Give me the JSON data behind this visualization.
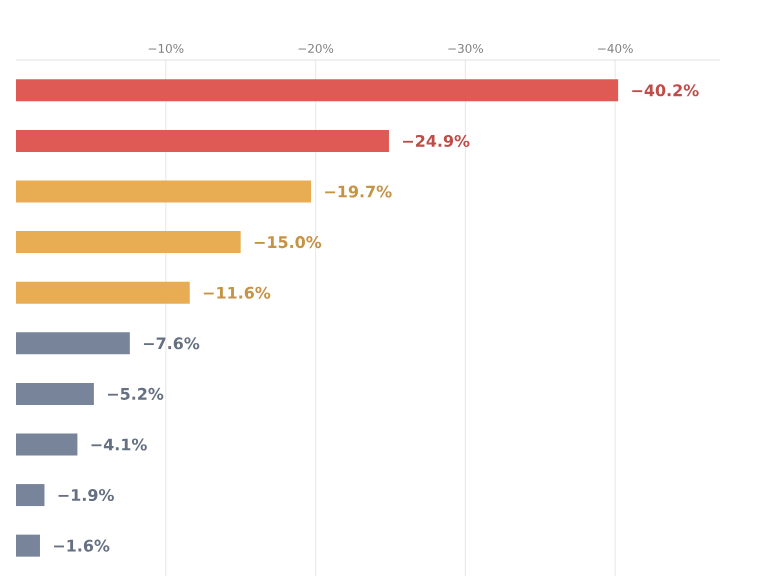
{
  "chart_data": {
    "type": "bar",
    "orientation": "horizontal",
    "categories": [
      null,
      null,
      null,
      null,
      null,
      null,
      null,
      null,
      null,
      null
    ],
    "values": [
      -40.2,
      -24.9,
      -19.7,
      -15.0,
      -11.6,
      -7.6,
      -5.2,
      -4.1,
      -1.9,
      -1.6
    ],
    "value_labels": [
      "−40.2%",
      "−24.9%",
      "−19.7%",
      "−15.0%",
      "−11.6%",
      "−7.6%",
      "−5.2%",
      "−4.1%",
      "−1.9%",
      "−1.6%"
    ],
    "colors": [
      "#e05a55",
      "#e05a55",
      "#e8ad52",
      "#e8ad52",
      "#e8ad52",
      "#778499",
      "#778499",
      "#778499",
      "#778499",
      "#778499"
    ],
    "xlim": [
      0,
      -47
    ],
    "xticks": [
      {
        "value": -10,
        "label": "−10%"
      },
      {
        "value": -20,
        "label": "−20%"
      },
      {
        "value": -30,
        "label": "−30%"
      },
      {
        "value": -40,
        "label": "−40%"
      }
    ],
    "grid": "x"
  }
}
